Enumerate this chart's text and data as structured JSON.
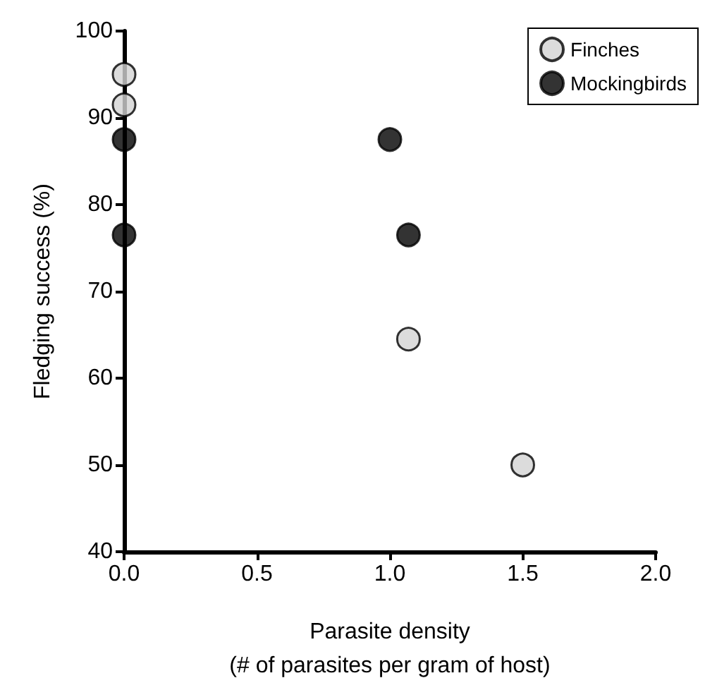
{
  "chart_data": {
    "type": "scatter",
    "xlabel": "Parasite density\n(# of parasites per gram of host)",
    "ylabel": "Fledging success (%)",
    "series": [
      {
        "name": "Finches",
        "color": "#d3d3d3",
        "x": [
          0,
          0,
          1.07,
          1.5
        ],
        "values": [
          95,
          91.5,
          64.5,
          50
        ]
      },
      {
        "name": "Mockingbirds",
        "color": "#000000",
        "x": [
          0,
          0,
          1.0,
          1.07
        ],
        "values": [
          87.5,
          76.5,
          87.5,
          76.5
        ]
      }
    ],
    "xlim": [
      0,
      2
    ],
    "xticks": [
      {
        "value": 0,
        "label": "0.0"
      },
      {
        "value": 0.5,
        "label": "0.5"
      },
      {
        "value": 1,
        "label": "1.0"
      },
      {
        "value": 1.5,
        "label": "1.5"
      },
      {
        "value": 2,
        "label": "2.0"
      }
    ],
    "ylim": [
      40,
      100
    ],
    "yticks": [
      40,
      50,
      60,
      70,
      80,
      90,
      100
    ],
    "grid": false,
    "legend": "top right",
    "marker": "circle"
  }
}
